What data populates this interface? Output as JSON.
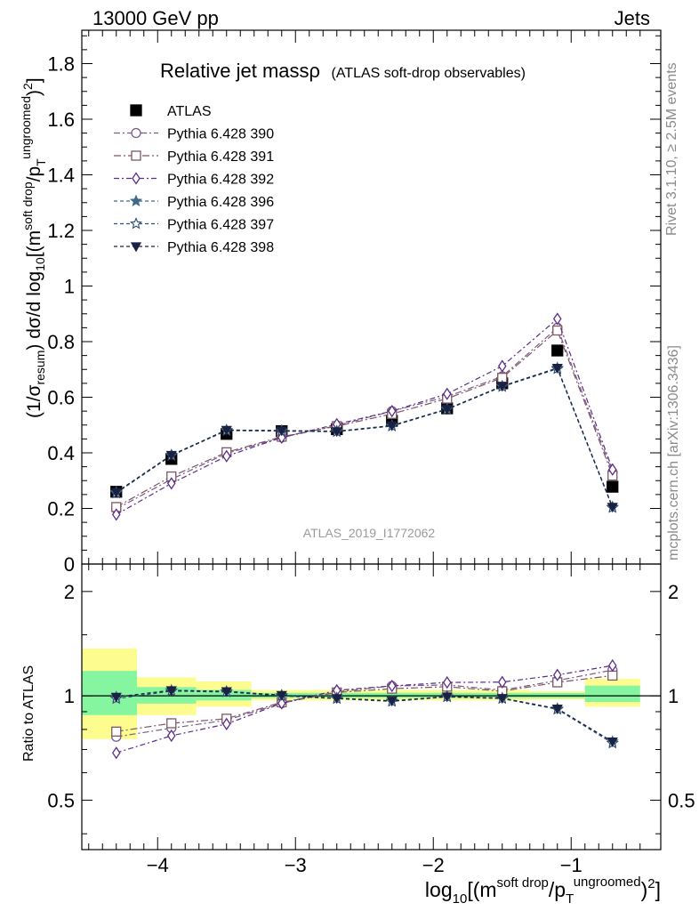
{
  "header": {
    "left": "13000 GeV pp",
    "right": "Jets",
    "title_main": "Relative jet massρ",
    "title_sub": "(ATLAS soft-drop observables)"
  },
  "side_labels": {
    "rivet": "Rivet 3.1.10, ≥ 2.5M events",
    "mcplots": "mcplots.cern.ch [arXiv:1306.3436]"
  },
  "watermark": "ATLAS_2019_I1772062",
  "axes": {
    "ylabel_top": "(1/σresum) dσ/d log10[(msoft drop/pTungroomed)2]",
    "ylabel_ratio": "Ratio to ATLAS",
    "xlabel": "log10[(msoft drop/pTungroomed)2]",
    "x_ticks": [
      "−4",
      "−3",
      "−2",
      "−1"
    ],
    "y_ticks_top": [
      "0",
      "0.2",
      "0.4",
      "0.6",
      "0.8",
      "1",
      "1.2",
      "1.4",
      "1.6",
      "1.8"
    ],
    "y_ticks_ratio": [
      "0.5",
      "1",
      "2"
    ]
  },
  "colors": {
    "data": "#000000",
    "s390": "#7a5a8c",
    "s391": "#7e5762",
    "s392": "#5b2d8a",
    "s396": "#3f6b86",
    "s397": "#2e4f72",
    "s398": "#1a2244",
    "band_green": "#86f5a0",
    "band_yellow": "#fdfc8f"
  },
  "chart_data": {
    "type": "line",
    "x": [
      -4.3,
      -3.9,
      -3.5,
      -3.1,
      -2.7,
      -2.3,
      -1.9,
      -1.5,
      -1.1,
      -0.7
    ],
    "xlim": [
      -4.55,
      -0.35
    ],
    "ylim": [
      0,
      1.92
    ],
    "ratio_ylim": [
      0.36,
      2.4
    ],
    "ratio_log": true,
    "series": [
      {
        "name": "ATLAS",
        "key": "data",
        "marker": "square-filled",
        "dash": "",
        "values": [
          0.26,
          0.378,
          0.468,
          0.478,
          0.485,
          0.515,
          0.56,
          0.65,
          0.768,
          0.278
        ]
      },
      {
        "name": "Pythia 6.428 390",
        "key": "s390",
        "marker": "circle-open",
        "dash": "7,3,2,3",
        "values": [
          0.198,
          0.305,
          0.398,
          0.455,
          0.498,
          0.55,
          0.602,
          0.675,
          0.85,
          0.33
        ]
      },
      {
        "name": "Pythia 6.428 391",
        "key": "s391",
        "marker": "square-open",
        "dash": "8,3,2,3",
        "values": [
          0.205,
          0.315,
          0.402,
          0.458,
          0.496,
          0.54,
          0.595,
          0.67,
          0.84,
          0.318
        ]
      },
      {
        "name": "Pythia 6.428 392",
        "key": "s392",
        "marker": "diamond-open",
        "dash": "6,3,2,3",
        "values": [
          0.178,
          0.29,
          0.388,
          0.455,
          0.503,
          0.55,
          0.612,
          0.712,
          0.882,
          0.34
        ]
      },
      {
        "name": "Pythia 6.428 396",
        "key": "s396",
        "marker": "star-filled",
        "dash": "4,3",
        "values": [
          0.258,
          0.392,
          0.482,
          0.48,
          0.478,
          0.498,
          0.558,
          0.64,
          0.705,
          0.205
        ]
      },
      {
        "name": "Pythia 6.428 397",
        "key": "s397",
        "marker": "star-open",
        "dash": "4,3",
        "values": [
          0.255,
          0.39,
          0.48,
          0.478,
          0.476,
          0.496,
          0.556,
          0.638,
          0.702,
          0.203
        ]
      },
      {
        "name": "Pythia 6.428 398",
        "key": "s398",
        "marker": "triangle-down-filled",
        "dash": "4,3",
        "values": [
          0.258,
          0.392,
          0.482,
          0.48,
          0.477,
          0.498,
          0.557,
          0.64,
          0.705,
          0.205
        ]
      }
    ],
    "ratio_bands": [
      {
        "x0": -4.55,
        "x1": -4.15,
        "green": [
          0.88,
          1.18
        ],
        "yellow": [
          0.75,
          1.37
        ]
      },
      {
        "x0": -4.15,
        "x1": -3.72,
        "green": [
          0.95,
          1.06
        ],
        "yellow": [
          0.88,
          1.13
        ]
      },
      {
        "x0": -3.72,
        "x1": -3.32,
        "green": [
          0.97,
          1.04
        ],
        "yellow": [
          0.93,
          1.1
        ]
      },
      {
        "x0": -3.32,
        "x1": -2.9,
        "green": [
          0.985,
          1.02
        ],
        "yellow": [
          0.97,
          1.04
        ]
      },
      {
        "x0": -2.9,
        "x1": -2.5,
        "green": [
          0.985,
          1.02
        ],
        "yellow": [
          0.97,
          1.04
        ]
      },
      {
        "x0": -2.5,
        "x1": -2.1,
        "green": [
          0.985,
          1.02
        ],
        "yellow": [
          0.97,
          1.04
        ]
      },
      {
        "x0": -2.1,
        "x1": -1.7,
        "green": [
          0.985,
          1.02
        ],
        "yellow": [
          0.97,
          1.04
        ]
      },
      {
        "x0": -1.7,
        "x1": -1.3,
        "green": [
          0.985,
          1.02
        ],
        "yellow": [
          0.97,
          1.04
        ]
      },
      {
        "x0": -1.3,
        "x1": -0.9,
        "green": [
          0.985,
          1.02
        ],
        "yellow": [
          0.975,
          1.03
        ]
      },
      {
        "x0": -0.9,
        "x1": -0.5,
        "green": [
          0.96,
          1.07
        ],
        "yellow": [
          0.93,
          1.12
        ]
      }
    ]
  }
}
